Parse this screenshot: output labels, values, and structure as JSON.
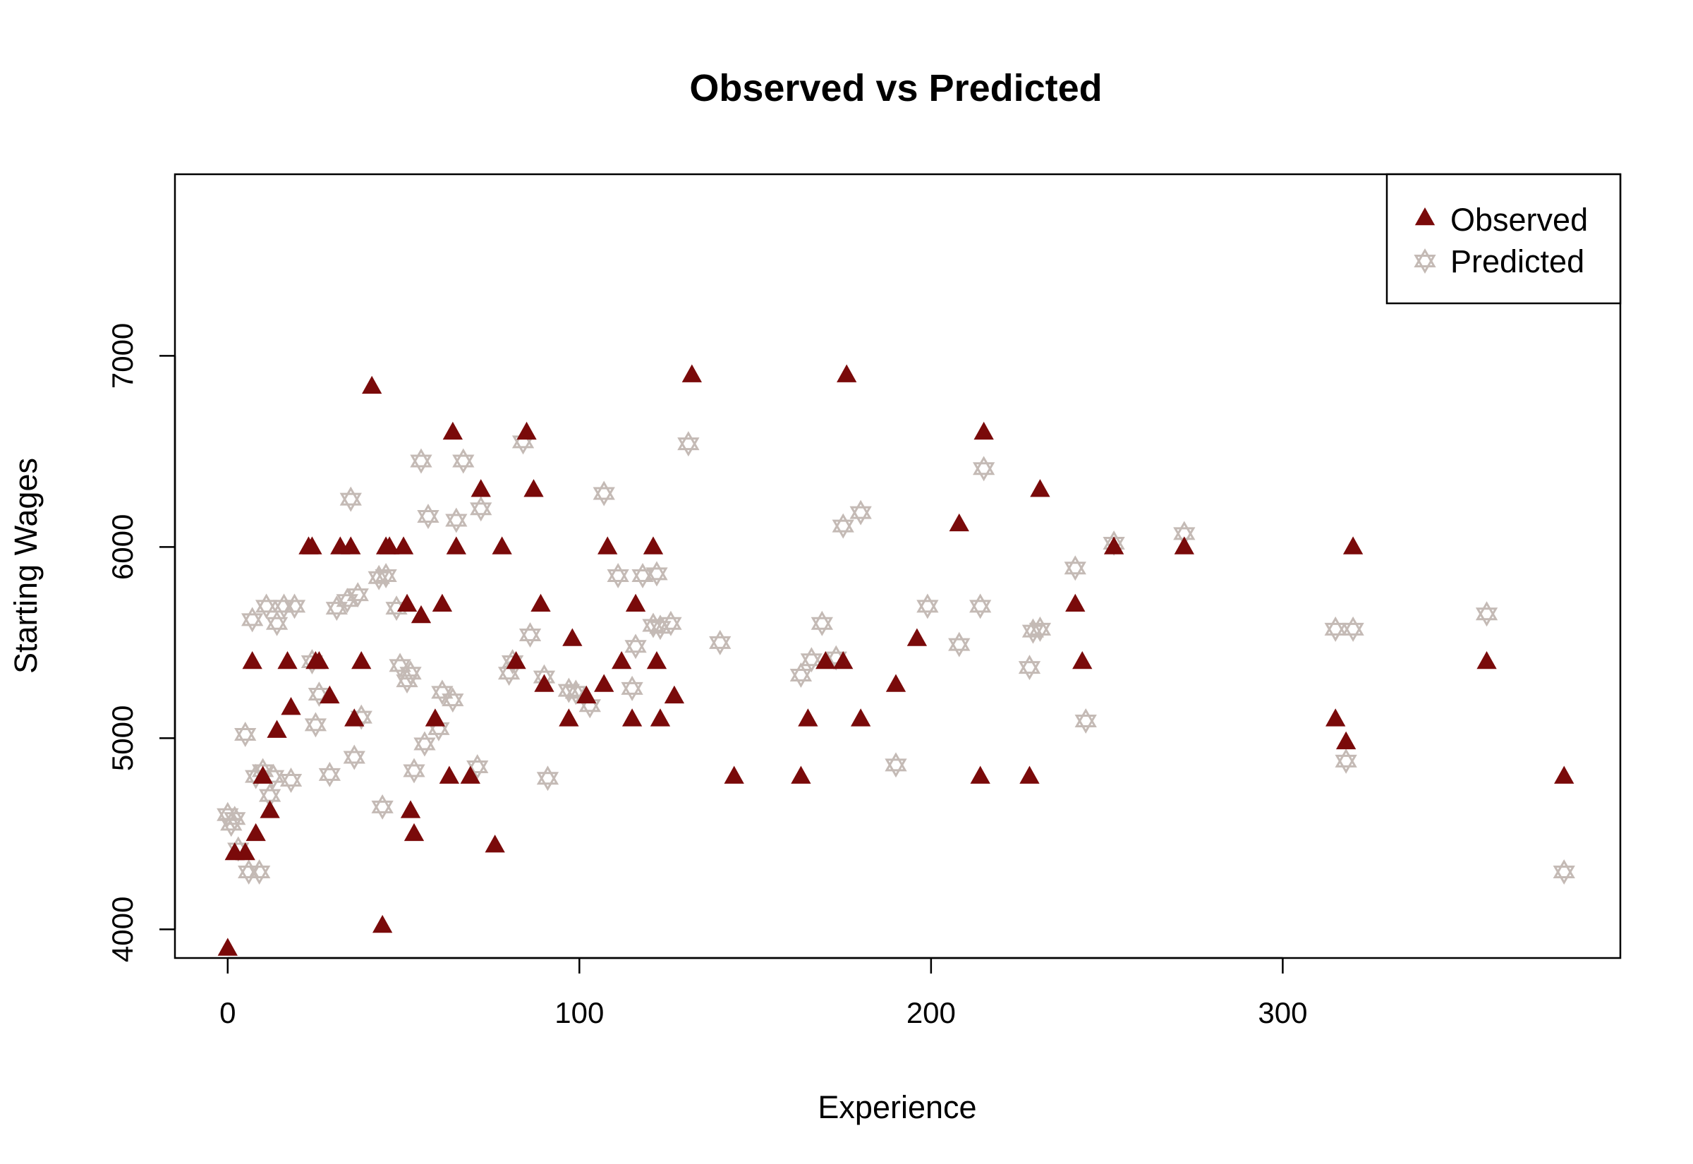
{
  "chart_data": {
    "type": "scatter",
    "title": "Observed vs Predicted",
    "xlabel": "Experience",
    "ylabel": "Starting Wages",
    "xlim": [
      -15,
      396
    ],
    "ylim": [
      3850,
      7950
    ],
    "xticks": [
      0,
      100,
      200,
      300
    ],
    "yticks": [
      4000,
      5000,
      6000,
      7000
    ],
    "grid": false,
    "legend_position": "top-right",
    "colors": {
      "Observed": "#7a0a0a",
      "Predicted": "#c4bab5"
    },
    "series": [
      {
        "name": "Observed",
        "marker": "filled-triangle",
        "x": [
          0,
          2,
          5,
          7,
          8,
          10,
          12,
          14,
          17,
          18,
          23,
          24,
          25,
          26,
          29,
          32,
          35,
          36,
          38,
          41,
          44,
          45,
          46,
          50,
          51,
          52,
          53,
          55,
          59,
          61,
          63,
          64,
          65,
          69,
          72,
          76,
          78,
          82,
          85,
          87,
          89,
          90,
          97,
          98,
          102,
          107,
          108,
          112,
          115,
          116,
          121,
          122,
          123,
          127,
          132,
          144,
          163,
          165,
          170,
          175,
          176,
          180,
          190,
          196,
          208,
          214,
          215,
          228,
          231,
          241,
          243,
          252,
          272,
          315,
          318,
          320,
          358,
          380
        ],
        "y": [
          3900,
          4400,
          4400,
          5400,
          4500,
          4800,
          4620,
          5040,
          5400,
          5160,
          6000,
          6000,
          5400,
          5400,
          5220,
          6000,
          6000,
          5100,
          5400,
          6840,
          4020,
          6000,
          6000,
          6000,
          5700,
          4620,
          4500,
          5640,
          5100,
          5700,
          4800,
          6600,
          6000,
          4800,
          6300,
          4440,
          6000,
          5400,
          6600,
          6300,
          5700,
          5280,
          5100,
          5520,
          5220,
          5280,
          6000,
          5400,
          5100,
          5700,
          6000,
          5400,
          5100,
          5220,
          6900,
          4800,
          4800,
          5100,
          5400,
          5400,
          6900,
          5100,
          5280,
          5520,
          6120,
          4800,
          6600,
          4800,
          6300,
          5700,
          5400,
          6000,
          6000,
          5100,
          4980,
          6000,
          5400,
          4800
        ]
      },
      {
        "name": "Predicted",
        "marker": "star-of-david",
        "x": [
          0,
          1,
          2,
          3,
          5,
          6,
          7,
          8,
          9,
          10,
          11,
          12,
          13,
          14,
          16,
          18,
          19,
          24,
          25,
          26,
          29,
          31,
          34,
          35,
          36,
          37,
          38,
          43,
          44,
          45,
          48,
          49,
          51,
          52,
          53,
          55,
          56,
          57,
          60,
          61,
          64,
          65,
          67,
          71,
          72,
          80,
          81,
          84,
          86,
          90,
          91,
          97,
          99,
          103,
          107,
          111,
          115,
          116,
          118,
          121,
          122,
          123,
          126,
          131,
          140,
          163,
          166,
          169,
          173,
          175,
          180,
          190,
          199,
          208,
          214,
          215,
          228,
          229,
          231,
          241,
          244,
          252,
          272,
          315,
          318,
          320,
          358,
          380
        ],
        "y": [
          4600,
          4550,
          4580,
          4420,
          5020,
          4300,
          5620,
          4800,
          4300,
          4830,
          5690,
          4700,
          4800,
          5600,
          5690,
          4780,
          5690,
          5400,
          5070,
          5230,
          4810,
          5680,
          5720,
          6250,
          4900,
          5750,
          5110,
          5840,
          4640,
          5850,
          5680,
          5380,
          5300,
          5340,
          4830,
          6450,
          4970,
          6160,
          5050,
          5240,
          5200,
          6140,
          6450,
          4850,
          6200,
          5340,
          5400,
          6550,
          5540,
          5320,
          4790,
          5250,
          5240,
          5170,
          6280,
          5850,
          5260,
          5480,
          5850,
          5590,
          5860,
          5580,
          5600,
          6540,
          5500,
          5330,
          5410,
          5600,
          5420,
          6110,
          6180,
          4860,
          5690,
          5490,
          5690,
          6410,
          5370,
          5560,
          5570,
          5890,
          5090,
          6020,
          6070,
          5570,
          4880,
          5570,
          5650,
          4300
        ]
      }
    ]
  }
}
